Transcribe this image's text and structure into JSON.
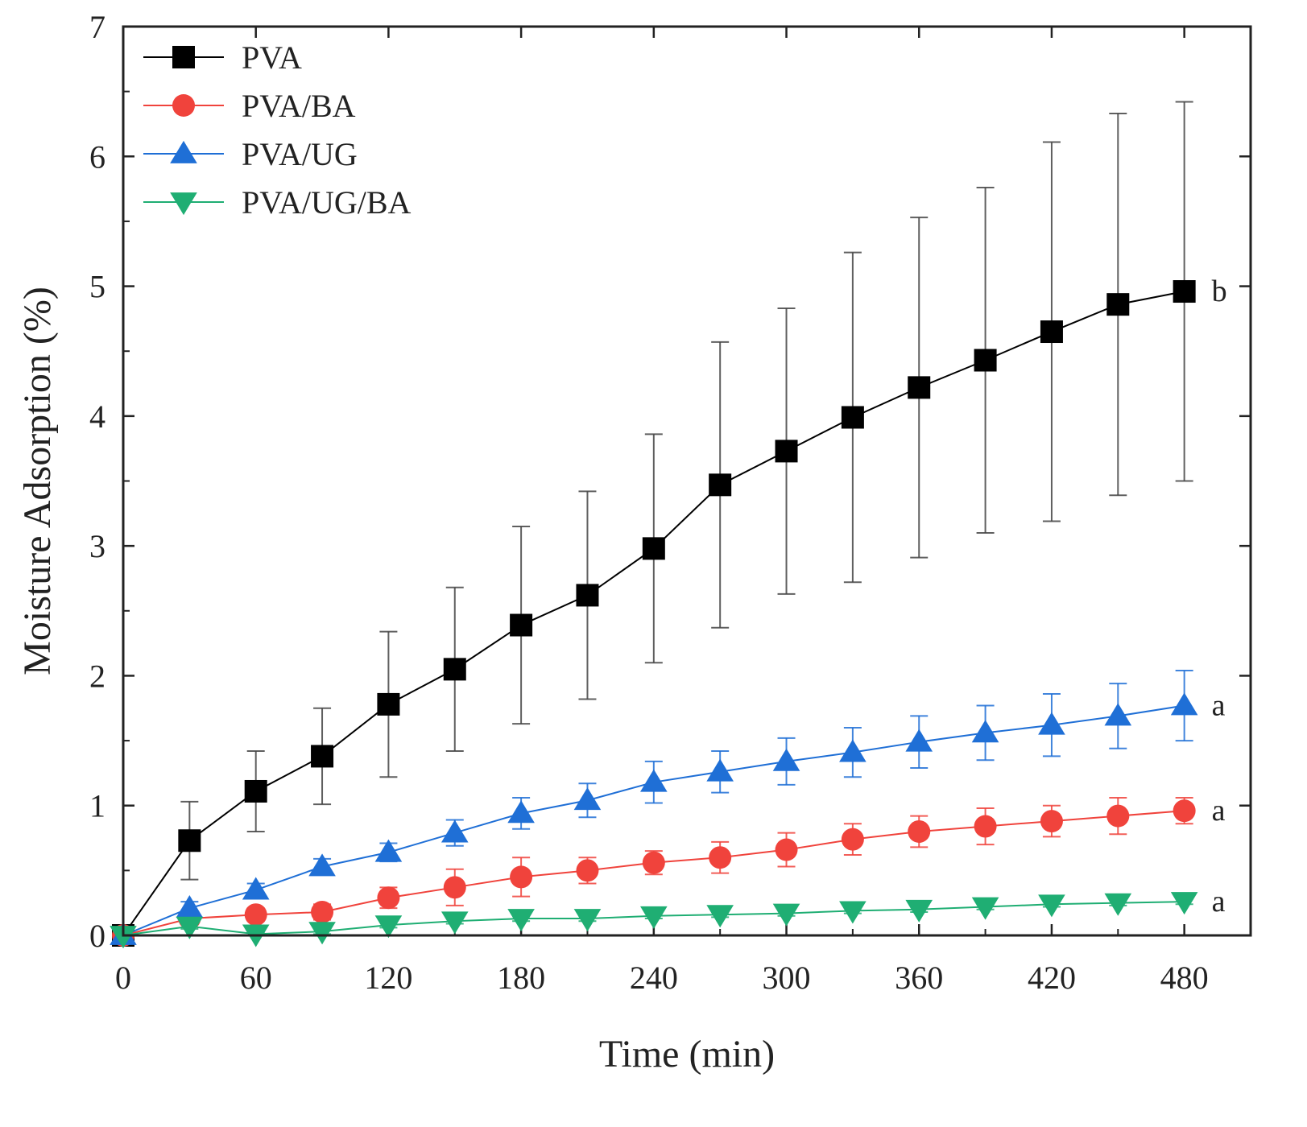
{
  "chart_data": {
    "type": "line",
    "title": "",
    "xlabel": "Time (min)",
    "ylabel": "Moisture Adsorption (%)",
    "xlim": [
      0,
      510
    ],
    "ylim": [
      0,
      7
    ],
    "xticks": [
      0,
      60,
      120,
      180,
      240,
      300,
      360,
      420,
      480
    ],
    "yticks": [
      0,
      1,
      2,
      3,
      4,
      5,
      6,
      7
    ],
    "legend_position": "top-left",
    "x": [
      0,
      30,
      60,
      90,
      120,
      150,
      180,
      210,
      240,
      270,
      300,
      330,
      360,
      390,
      420,
      450,
      480
    ],
    "series": [
      {
        "name": "PVA",
        "color": "#000000",
        "marker": "square",
        "values": [
          0,
          0.73,
          1.11,
          1.38,
          1.78,
          2.05,
          2.39,
          2.62,
          2.98,
          3.47,
          3.73,
          3.99,
          4.22,
          4.43,
          4.65,
          4.86,
          4.96
        ],
        "errors": [
          0,
          0.3,
          0.31,
          0.37,
          0.56,
          0.63,
          0.76,
          0.8,
          0.88,
          1.1,
          1.1,
          1.27,
          1.31,
          1.33,
          1.46,
          1.47,
          1.46
        ],
        "significance": "b"
      },
      {
        "name": "PVA/BA",
        "color": "#f0433c",
        "marker": "circle",
        "values": [
          0,
          0.13,
          0.16,
          0.18,
          0.29,
          0.37,
          0.45,
          0.5,
          0.56,
          0.6,
          0.66,
          0.74,
          0.8,
          0.84,
          0.88,
          0.92,
          0.96
        ],
        "errors": [
          0,
          0.04,
          0.05,
          0.06,
          0.08,
          0.14,
          0.15,
          0.1,
          0.09,
          0.12,
          0.13,
          0.12,
          0.12,
          0.14,
          0.12,
          0.14,
          0.1
        ],
        "significance": "a"
      },
      {
        "name": "PVA/UG",
        "color": "#1f6fd6",
        "marker": "triangle-up",
        "values": [
          0,
          0.21,
          0.35,
          0.53,
          0.64,
          0.79,
          0.94,
          1.04,
          1.18,
          1.26,
          1.34,
          1.41,
          1.49,
          1.56,
          1.62,
          1.69,
          1.77
        ],
        "errors": [
          0,
          0.05,
          0.05,
          0.06,
          0.07,
          0.1,
          0.12,
          0.13,
          0.16,
          0.16,
          0.18,
          0.19,
          0.2,
          0.21,
          0.24,
          0.25,
          0.27
        ],
        "significance": "a"
      },
      {
        "name": "PVA/UG/BA",
        "color": "#1fae73",
        "marker": "triangle-down",
        "values": [
          0,
          0.07,
          0.01,
          0.03,
          0.08,
          0.11,
          0.13,
          0.13,
          0.15,
          0.16,
          0.17,
          0.19,
          0.2,
          0.22,
          0.24,
          0.25,
          0.26
        ],
        "errors": [
          0,
          0.02,
          0.01,
          0.02,
          0.02,
          0.02,
          0.02,
          0.02,
          0.02,
          0.02,
          0.02,
          0.02,
          0.02,
          0.02,
          0.02,
          0.02,
          0.02
        ],
        "significance": "a"
      }
    ]
  }
}
